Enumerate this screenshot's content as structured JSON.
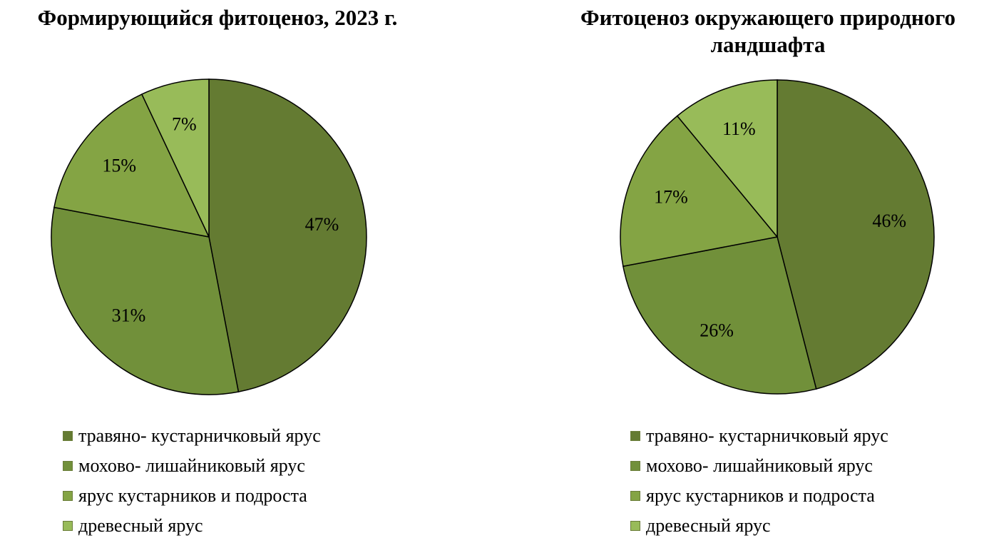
{
  "chart_data": [
    {
      "type": "pie",
      "title": "Формирующийся фитоценоз, 2023 г.",
      "categories": [
        "травяно- кустарничковый ярус",
        "мохово- лишайниковый ярус",
        "ярус кустарников и подроста",
        "древесный ярус"
      ],
      "values": [
        47,
        31,
        15,
        7
      ],
      "labels": [
        "47%",
        "31%",
        "15%",
        "7%"
      ],
      "colors": [
        "#647b32",
        "#71903a",
        "#84a444",
        "#98bb59"
      ],
      "legend_position": "bottom"
    },
    {
      "type": "pie",
      "title": "Фитоценоз окружающего природного ландшафта",
      "categories": [
        "травяно- кустарничковый ярус",
        "мохово- лишайниковый ярус",
        "ярус кустарников и подроста",
        "древесный ярус"
      ],
      "values": [
        46,
        26,
        17,
        11
      ],
      "labels": [
        "46%",
        "26%",
        "17%",
        "11%"
      ],
      "colors": [
        "#647b32",
        "#71903a",
        "#84a444",
        "#98bb59"
      ],
      "legend_position": "bottom"
    }
  ]
}
